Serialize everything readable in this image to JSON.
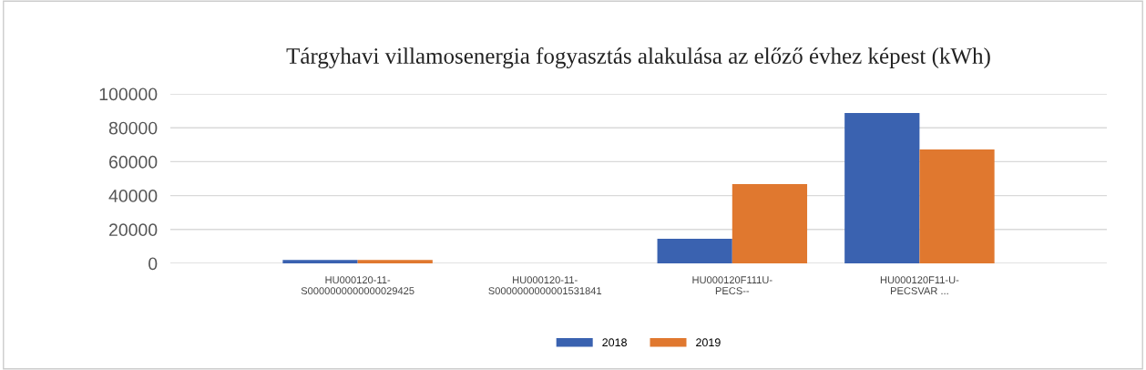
{
  "chart_data": {
    "type": "bar",
    "title": "Tárgyhavi villamosenergia fogyasztás alakulása az előző évhez képest (kWh)",
    "categories": [
      "HU000120-11-\nS0000000000000029425",
      "HU000120-11-\nS0000000000001531841",
      "HU000120F111U-\nPECS--",
      "HU000120F11-U-\nPECSVAR ..."
    ],
    "series": [
      {
        "name": "2018",
        "color": "#3a62b0",
        "values": [
          2000,
          0,
          14500,
          88700
        ]
      },
      {
        "name": "2019",
        "color": "#e0782f",
        "values": [
          2000,
          0,
          46800,
          67200
        ]
      }
    ],
    "ylim": [
      0,
      100000
    ],
    "yticks": [
      0,
      20000,
      40000,
      60000,
      80000,
      100000
    ],
    "grid": "y",
    "legend": "bottom"
  }
}
